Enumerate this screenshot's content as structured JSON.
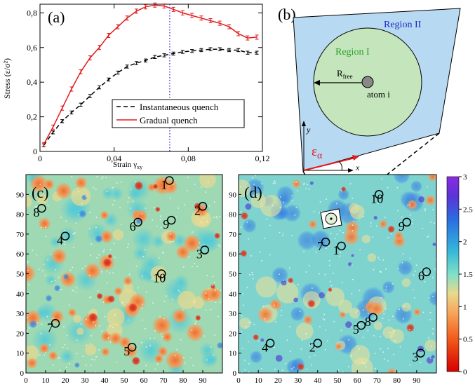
{
  "panels": {
    "a": "(a)",
    "b": "(b)",
    "c": "(c)",
    "d": "(d)"
  },
  "colors": {
    "gradual": "#e31a1c",
    "instantaneous": "#000000",
    "vline": "#1f1fdd",
    "region2": "#b8d9f2",
    "region1": "#c5e6bd",
    "region2_text": "#1a2bbf",
    "region1_text": "#2ca02c",
    "arrow_red": "#e31a1c"
  },
  "chart_data": [
    {
      "type": "line",
      "panel": "(a)",
      "xlabel_main": "Strain",
      "xlabel_sym": "γ",
      "xlabel_sub": "xy",
      "ylabel": "Stress (ε/σ²)",
      "xlim": [
        0,
        0.12
      ],
      "ylim": [
        0,
        0.85
      ],
      "x_ticks": [
        {
          "v": 0,
          "label": "0"
        },
        {
          "v": 0.04,
          "label": "0,04"
        },
        {
          "v": 0.08,
          "label": "0,08"
        },
        {
          "v": 0.12,
          "label": "0,12"
        }
      ],
      "y_ticks": [
        {
          "v": 0,
          "label": "0"
        },
        {
          "v": 0.2,
          "label": "0,2"
        },
        {
          "v": 0.4,
          "label": "0,4"
        },
        {
          "v": 0.6,
          "label": "0,6"
        },
        {
          "v": 0.8,
          "label": "0,8"
        }
      ],
      "vertical_line_x": 0.07,
      "series": [
        {
          "name": "Instantaneous quench",
          "style": "dashed",
          "x": [
            0.002,
            0.007,
            0.012,
            0.017,
            0.022,
            0.027,
            0.032,
            0.037,
            0.042,
            0.047,
            0.052,
            0.057,
            0.062,
            0.067,
            0.072,
            0.077,
            0.082,
            0.087,
            0.092,
            0.097,
            0.102,
            0.107,
            0.112,
            0.117
          ],
          "y": [
            0.035,
            0.11,
            0.175,
            0.225,
            0.27,
            0.32,
            0.37,
            0.415,
            0.455,
            0.49,
            0.51,
            0.525,
            0.545,
            0.555,
            0.565,
            0.575,
            0.58,
            0.585,
            0.59,
            0.59,
            0.585,
            0.585,
            0.57,
            0.57
          ]
        },
        {
          "name": "Gradual quench",
          "style": "solid",
          "x": [
            0.002,
            0.007,
            0.012,
            0.017,
            0.022,
            0.027,
            0.032,
            0.037,
            0.042,
            0.047,
            0.052,
            0.057,
            0.062,
            0.067,
            0.072,
            0.077,
            0.082,
            0.087,
            0.092,
            0.097,
            0.102,
            0.107,
            0.112,
            0.117
          ],
          "y": [
            0.04,
            0.14,
            0.25,
            0.36,
            0.46,
            0.54,
            0.6,
            0.67,
            0.72,
            0.77,
            0.81,
            0.835,
            0.845,
            0.84,
            0.82,
            0.8,
            0.785,
            0.77,
            0.755,
            0.74,
            0.72,
            0.68,
            0.655,
            0.66
          ]
        }
      ]
    },
    {
      "type": "heatmap",
      "panel": "(c)",
      "xlim": [
        0,
        100
      ],
      "ylim": [
        0,
        100
      ],
      "ticks": [
        0,
        10,
        20,
        30,
        40,
        50,
        60,
        70,
        80,
        90
      ],
      "markers": [
        {
          "n": "1",
          "x": 73,
          "y": 97
        },
        {
          "n": "2",
          "x": 90,
          "y": 84
        },
        {
          "n": "3",
          "x": 91,
          "y": 62
        },
        {
          "n": "4",
          "x": 20,
          "y": 69
        },
        {
          "n": "5",
          "x": 54,
          "y": 13
        },
        {
          "n": "6",
          "x": 57,
          "y": 76
        },
        {
          "n": "7",
          "x": 15,
          "y": 25
        },
        {
          "n": "8",
          "x": 8,
          "y": 83
        },
        {
          "n": "9",
          "x": 74,
          "y": 77
        },
        {
          "n": "10",
          "x": 69,
          "y": 50
        }
      ]
    },
    {
      "type": "heatmap",
      "panel": "(d)",
      "xlim": [
        0,
        100
      ],
      "ylim": [
        0,
        100
      ],
      "ticks": [
        0,
        10,
        20,
        30,
        40,
        50,
        60,
        70,
        80,
        90
      ],
      "colorbar_ticks": [
        "0",
        "0.5",
        "1",
        "1.5",
        "2",
        "2.5",
        "3"
      ],
      "colorbar_range": [
        0,
        3
      ],
      "markers": [
        {
          "n": "1",
          "x": 52,
          "y": 64
        },
        {
          "n": "2",
          "x": 40,
          "y": 15
        },
        {
          "n": "3",
          "x": 92,
          "y": 10
        },
        {
          "n": "4",
          "x": 16,
          "y": 15
        },
        {
          "n": "5",
          "x": 62,
          "y": 24
        },
        {
          "n": "6",
          "x": 95,
          "y": 51
        },
        {
          "n": "7",
          "x": 44,
          "y": 66
        },
        {
          "n": "8",
          "x": 68,
          "y": 28
        },
        {
          "n": "9",
          "x": 85,
          "y": 76
        },
        {
          "n": "10",
          "x": 71,
          "y": 90
        }
      ]
    }
  ],
  "diagram_b": {
    "region2": "Region II",
    "region1": "Region I",
    "rfree_main": "R",
    "rfree_sub": "free",
    "atom": "atom i",
    "y_axis": "y",
    "x_axis": "x",
    "epsilon_main": "ε",
    "epsilon_sub": "α"
  }
}
